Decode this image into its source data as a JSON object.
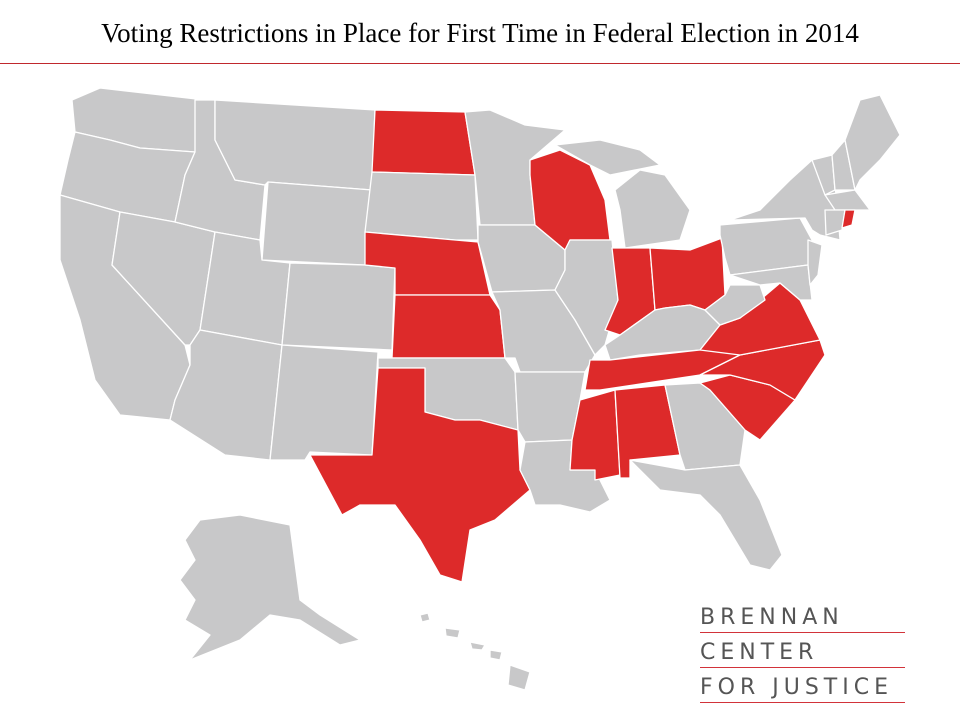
{
  "header": {
    "title": "Voting Restrictions in Place for First Time in Federal Election in 2014"
  },
  "logo": {
    "lines": [
      "BRENNAN",
      "CENTER",
      "FOR JUSTICE"
    ]
  }
}
